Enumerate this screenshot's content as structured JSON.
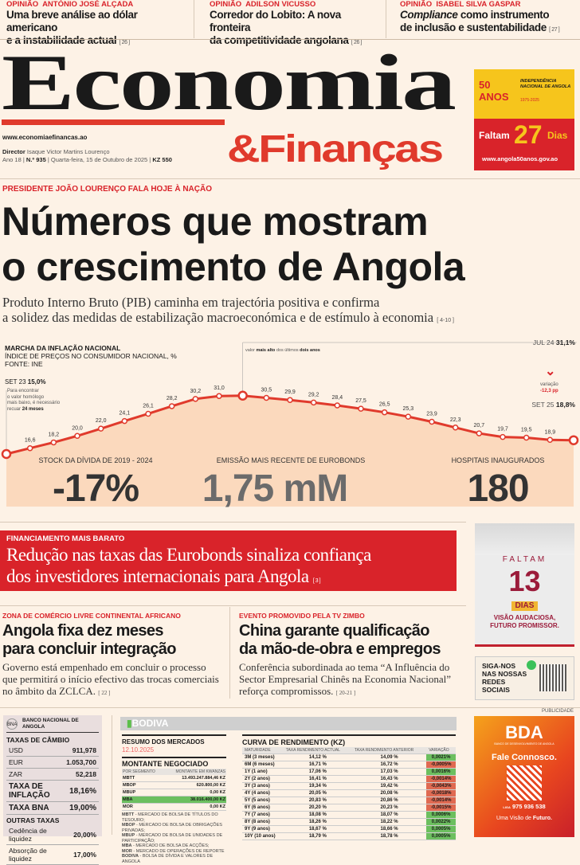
{
  "opinions": [
    {
      "kicker": "OPINIÃO",
      "author": "ANTÓNIO JOSÉ ALÇADA",
      "title_l1": "Uma breve análise ao dólar americano",
      "title_l2": "e a instabilidade actual",
      "page": "[ 26 ]"
    },
    {
      "kicker": "OPINIÃO",
      "author": "ADILSON VICUSSO",
      "title_l1": "Corredor do Lobito: A nova fronteira",
      "title_l2": "da competitividade angolana",
      "page": "[ 26 ]"
    },
    {
      "kicker": "OPINIÃO",
      "author": "ISABEL SILVA GASPAR",
      "title_italic": "Compliance",
      "title_l1": " como instrumento",
      "title_l2": "de inclusão e sustentabilidade",
      "page": "[ 27 ]"
    }
  ],
  "masthead": {
    "name1": "Economia",
    "name2": "&Finanças",
    "website": "www.economiaefinancas.ao",
    "director_label": "Director",
    "director": "Isaque Victor Martins Lourenço",
    "year": "Ano 18",
    "number": "N.º 935",
    "date": "Quarta-feira, 15 de Outubro de 2025",
    "price": "KZ 550"
  },
  "ad_independence": {
    "logo_text": "50 ANOS",
    "title": "INDEPENDÊNCIA NACIONAL DE ANGOLA",
    "years": "1975-2025",
    "faltam": "Faltam",
    "days": "27",
    "dias": "Dias",
    "url": "www.angola50anos.gov.ao",
    "colors": {
      "yellow": "#f6c51c",
      "red": "#d9232a"
    }
  },
  "lead": {
    "kicker": "PRESIDENTE JOÃO LOURENÇO FALA HOJE À NAÇÃO",
    "headline_l1": "Números que mostram",
    "headline_l2": "o crescimento de Angola",
    "dek_l1": "Produto Interno Bruto (PIB) caminha em trajectória positiva e confirma",
    "dek_l2": "a solidez das medidas de estabilização macroeconómica e de estímulo à economia",
    "page": "[ 4-10 ]"
  },
  "chart_data": {
    "type": "line",
    "title": "MARCHA DA INFLAÇÃO NACIONAL",
    "subtitle": "ÍNDICE DE PREÇOS NO CONSUMIDOR NACIONAL, %",
    "source": "FONTE: INE",
    "values": [
      15.0,
      16.6,
      18.2,
      20.0,
      22.0,
      24.1,
      26.1,
      28.2,
      30.2,
      31.0,
      31.1,
      30.5,
      29.9,
      29.2,
      28.4,
      27.5,
      26.5,
      25.3,
      23.9,
      22.3,
      20.7,
      19.7,
      19.5,
      18.9,
      18.8
    ],
    "labels": [
      "",
      "16,6",
      "18,2",
      "20,0",
      "22,0",
      "24,1",
      "26,1",
      "28,2",
      "30,2",
      "31,0",
      "",
      "30,5",
      "29,9",
      "29,2",
      "28,4",
      "27,5",
      "26,5",
      "25,3",
      "23,9",
      "22,3",
      "20,7",
      "19,7",
      "19,5",
      "18,9",
      ""
    ],
    "start": {
      "label": "SET 23",
      "value": "15,0%",
      "note_l1": "Para encontrar",
      "note_l2": "o valor homólogo",
      "note_l3": "mais baixo, é necessário",
      "note_l4": "recuar",
      "note_bold": "24 meses"
    },
    "peak": {
      "label": "JUL 24",
      "value": "31,1%",
      "note_a": "valor ",
      "note_b": "mais alto",
      "note_c": " dos últimos ",
      "note_d": "dois anos"
    },
    "end": {
      "label": "SET 25",
      "value": "18,8%"
    },
    "variation": {
      "label": "variação",
      "value": "-12,3 pp"
    },
    "colors": {
      "line": "#e03a2c",
      "area": "#fbd9bd"
    }
  },
  "stats": [
    {
      "label": "STOCK DA DÍVIDA DE 2019 - 2024",
      "value": "-17%",
      "color": "#333333"
    },
    {
      "label": "EMISSÃO MAIS RECENTE DE EUROBONDS",
      "value": "1,75 mM",
      "color": "#6b6b6b"
    },
    {
      "label": "HOSPITAIS INAUGURADOS",
      "value": "180",
      "color": "#333333"
    }
  ],
  "banner": {
    "kicker": "FINANCIAMENTO MAIS BARATO",
    "title_l1": "Redução nas taxas das Eurobonds sinaliza confiança",
    "title_l2": "dos investidores internacionais para Angola",
    "page": "[ 3 ]"
  },
  "story1": {
    "kicker": "ZONA DE COMÉRCIO LIVRE CONTINENTAL AFRICANO",
    "title_l1": "Angola fixa dez meses",
    "title_l2": "para concluir integração",
    "body": "Governo está empenhado em concluir o processo que permitirá o início efectivo das trocas comerciais no âmbito da ZCLCA.",
    "page": "[ 22 ]"
  },
  "story2": {
    "kicker": "EVENTO PROMOVIDO PELA TV ZIMBO",
    "title_l1": "China garante qualificação",
    "title_l2": "da mão-de-obra e empregos",
    "body": "Conferência subordinada ao tema “A Influência do Sector Empresarial Chinês na Economia Nacional” reforça compromissos.",
    "page": "[ 20-21 ]"
  },
  "ad_forum": {
    "faltam": "FALTAM",
    "days": "13",
    "dias": "DIAS",
    "slogan_l1": "VISÃO AUDACIOSA,",
    "slogan_l2": "FUTURO PROMISSOR."
  },
  "social": {
    "text_l1": "SIGA-NOS",
    "text_l2": "NAS NOSSAS",
    "text_l3": "REDES",
    "text_l4": "SOCIAIS",
    "icon": "whatsapp-icon"
  },
  "bna": {
    "header": "BANCO NACIONAL DE ANGOLA",
    "logo": "BNA",
    "fx_title": "TAXAS DE CÂMBIO",
    "fx": [
      {
        "k": "USD",
        "v": "911,978"
      },
      {
        "k": "EUR",
        "v": "1.053,700"
      },
      {
        "k": "ZAR",
        "v": "52,218"
      }
    ],
    "main": [
      {
        "k": "TAXA DE INFLAÇÃO",
        "v": "18,16%"
      },
      {
        "k": "TAXA BNA",
        "v": "19,00%"
      }
    ],
    "other_title": "OUTRAS TAXAS",
    "other": [
      {
        "k": "Cedência de liquidez",
        "v": "20,00%"
      },
      {
        "k": "Absorção de liquidez",
        "v": "17,00%"
      }
    ]
  },
  "bodiva": {
    "logo": "BODIVA",
    "summary_title": "RESUMO DOS MERCADOS",
    "summary_date": "12.10.2025",
    "montante_title": "MONTANTE NEGOCIADO",
    "col1": "POR SEGMENTO",
    "col2": "MONTANTE EM KWANZAS",
    "segments": [
      {
        "k": "MBTT",
        "v": "13.493.247.884,46 KZ"
      },
      {
        "k": "MBOP",
        "v": "620.800,00 KZ"
      },
      {
        "k": "MBUP",
        "v": "0,00 KZ"
      },
      {
        "k": "MBA",
        "v": "38.016.400,00 KZ",
        "hl": true
      },
      {
        "k": "MOR",
        "v": "0,00 KZ"
      }
    ],
    "legend": [
      {
        "k": "MBTT",
        "v": " - MERCADO DE BOLSA DE TÍTULOS DO TESOURO;"
      },
      {
        "k": "MBOP",
        "v": " - MERCADO DE BOLSA DE OBRIGAÇÕES PRIVADAS;"
      },
      {
        "k": "MBUP",
        "v": " - MERCADO DE BOLSA DE UNIDADES DE PARTICIPAÇÃO;"
      },
      {
        "k": "MBA",
        "v": " - MERCADO DE BOLSA DE ACÇÕES;"
      },
      {
        "k": "MOR",
        "v": " - MERCADO DE OPERAÇÕES DE REPORTE"
      },
      {
        "k": "BODIVA",
        "v": " - BOLSA DE DÍVIDA E VALORES DE ANGOLA"
      }
    ],
    "curve_title": "CURVA DE RENDIMENTO (KZ)",
    "curve_cols": [
      "MATURIDADE",
      "TAXA RENDIMENTO ACTUAL",
      "TAXA RENDIMENTO ANTERIOR",
      "VARIAÇÃO"
    ],
    "curve": [
      [
        "3M (3 meses)",
        "14,12 %",
        "14,09 %",
        "0,0021%"
      ],
      [
        "6M (6 meses)",
        "16,71 %",
        "16,72 %",
        "-0,0005%"
      ],
      [
        "1Y (1 ano)",
        "17,06 %",
        "17,03 %",
        "0,0016%"
      ],
      [
        "2Y (2 anos)",
        "16,41 %",
        "16,43 %",
        "-0,0014%"
      ],
      [
        "3Y (3 anos)",
        "19,34 %",
        "19,42 %",
        "-0,0043%"
      ],
      [
        "4Y (4 anos)",
        "20,05 %",
        "20,08 %",
        "-0,0018%"
      ],
      [
        "5Y (5 anos)",
        "20,83 %",
        "20,86 %",
        "-0,0014%"
      ],
      [
        "6Y (6 anos)",
        "20,20 %",
        "20,23 %",
        "-0,0015%"
      ],
      [
        "7Y (7 anos)",
        "18,08 %",
        "18,07 %",
        "0,0006%"
      ],
      [
        "8Y (8 anos)",
        "18,26 %",
        "18,22 %",
        "0,0022%"
      ],
      [
        "9Y (9 anos)",
        "18,67 %",
        "18,66 %",
        "0,0005%"
      ],
      [
        "10Y (10 anos)",
        "18,79 %",
        "18,78 %",
        "0,0005%"
      ]
    ]
  },
  "ad_bda": {
    "label": "PUBLICIDADE",
    "logo": "BDA",
    "sub": "BANCO DE DESENVOLVIMENTO DE ANGOLA",
    "cta": "Fale Connosco.",
    "phone_prefix": "LIGA",
    "phone": "975 936 538",
    "slogan_a": "Uma Visão de ",
    "slogan_b": "Futuro."
  }
}
